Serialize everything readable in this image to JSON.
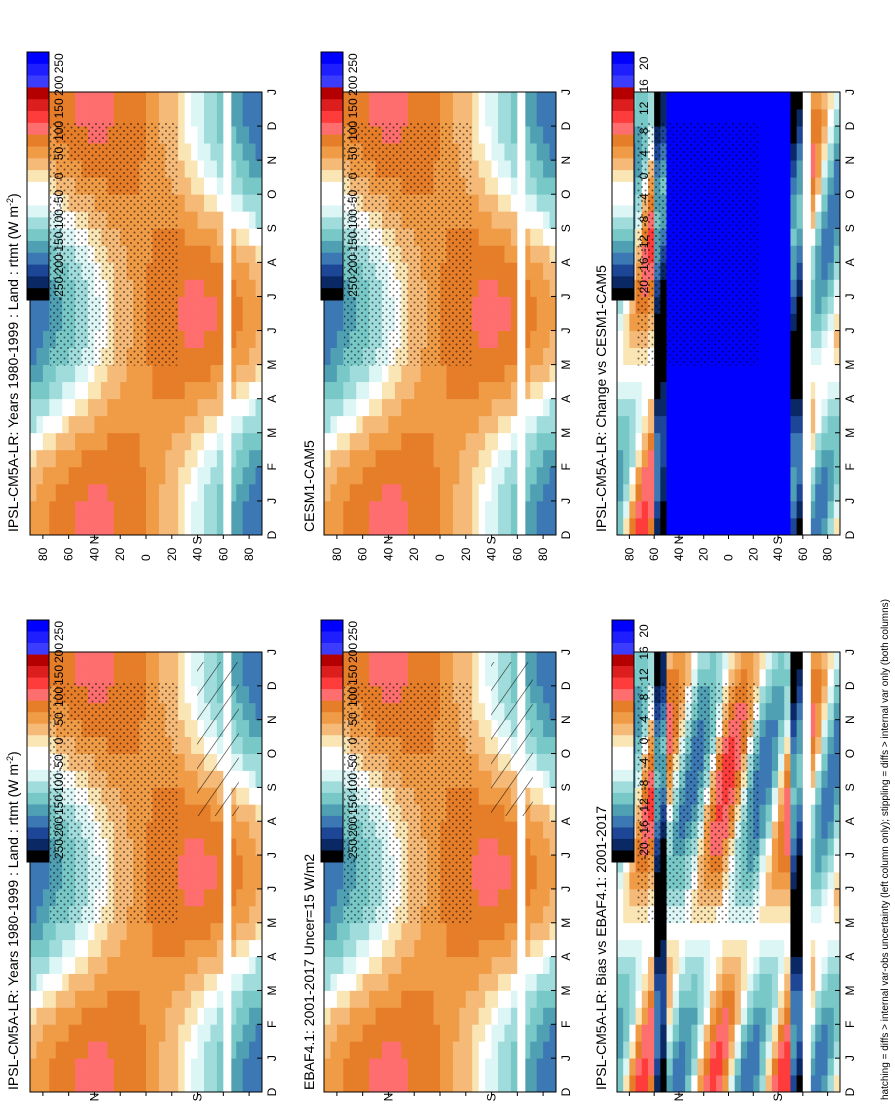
{
  "figure": {
    "caption": "hatching = diffs > internal var-obs uncertainty (left column only); stippling = diffs > internal var only (both columns)",
    "orientation_note": "rotated 90 degrees clockwise",
    "colors": {
      "blue": "#0000ff",
      "deep_red": "#b40000",
      "red": "#ff3c3c",
      "orange": "#e67d28",
      "white": "#ffffff",
      "teal": "#78c8c8",
      "black": "#000000"
    }
  },
  "chart_data": [
    {
      "type": "heatmap",
      "panel": "left-top",
      "title": "IPSL-CM5A-LR: Years 1980-1999 : Land : rtmt (W m",
      "title_sup": "-2",
      "title_end": ")",
      "xlabel": "Month",
      "ylabel": "Latitude",
      "months": [
        "D",
        "J",
        "F",
        "M",
        "A",
        "M",
        "J",
        "J",
        "A",
        "S",
        "O",
        "N",
        "D",
        "J"
      ],
      "lat_ticks": [
        "80",
        "60",
        "40",
        "20",
        "0",
        "20",
        "40",
        "60",
        "80"
      ],
      "lat_suffix": [
        "",
        "",
        "N",
        "",
        "",
        "",
        "S",
        "",
        ""
      ],
      "lat_range": [
        -90,
        90
      ],
      "colorbar": {
        "labels": [
          "250",
          "200",
          "150",
          "100",
          "50",
          "0",
          "-50",
          "-100",
          "-150",
          "-200",
          "-250"
        ],
        "colors": [
          "#0000ff",
          "#1e1eff",
          "#3c3cff",
          "#b40000",
          "#dc1e1e",
          "#ff3c3c",
          "#ff6e6e",
          "#e67d28",
          "#f09b46",
          "#f5b978",
          "#fae6b4",
          "#ffffff",
          "#ffffff",
          "#dcf5f5",
          "#a0dcdc",
          "#78c8c8",
          "#50a0b4",
          "#3c78b4",
          "#1e4696",
          "#0a2864",
          "#000000"
        ]
      },
      "hatching": true,
      "stippling": true
    },
    {
      "type": "heatmap",
      "panel": "left-middle",
      "title": "EBAF4.1: 2001-2017 Uncer=15 W/m2",
      "xlabel": "Month",
      "ylabel": "Latitude",
      "months": [
        "D",
        "J",
        "F",
        "M",
        "A",
        "M",
        "J",
        "J",
        "A",
        "S",
        "O",
        "N",
        "D",
        "J"
      ],
      "lat_ticks": [
        "80",
        "60",
        "40",
        "20",
        "0",
        "20",
        "40",
        "60",
        "80"
      ],
      "lat_suffix": [
        "",
        "",
        "N",
        "",
        "",
        "",
        "S",
        "",
        ""
      ],
      "lat_range": [
        -90,
        90
      ],
      "colorbar": {
        "labels": [
          "250",
          "200",
          "150",
          "100",
          "50",
          "0",
          "-50",
          "-100",
          "-150",
          "-200",
          "-250"
        ]
      },
      "hatching": true,
      "stippling": true
    },
    {
      "type": "heatmap",
      "panel": "left-bottom",
      "title": "IPSL-CM5A-LR: Bias vs EBAF4.1: 2001-2017",
      "xlabel": "Month",
      "ylabel": "Latitude",
      "months": [
        "D",
        "J",
        "F",
        "M",
        "A",
        "M",
        "J",
        "J",
        "A",
        "S",
        "O",
        "N",
        "D",
        "J"
      ],
      "lat_ticks": [
        "80",
        "60",
        "40",
        "20",
        "0",
        "20",
        "40",
        "60",
        "80"
      ],
      "lat_suffix": [
        "",
        "",
        "N",
        "",
        "",
        "",
        "S",
        "",
        ""
      ],
      "lat_range": [
        -90,
        90
      ],
      "colorbar": {
        "labels": [
          "20",
          "16",
          "12",
          "8",
          "4",
          "0",
          "-4",
          "-8",
          "-12",
          "-16",
          "-20"
        ],
        "colors": [
          "#0000ff",
          "#1e1eff",
          "#3c3cff",
          "#b40000",
          "#dc1e1e",
          "#ff3c3c",
          "#ff6e6e",
          "#e67d28",
          "#f09b46",
          "#f5b978",
          "#fae6b4",
          "#ffffff",
          "#ffffff",
          "#dcf5f5",
          "#a0dcdc",
          "#78c8c8",
          "#50a0b4",
          "#3c78b4",
          "#1e4696",
          "#0a2864",
          "#000000"
        ]
      },
      "stippling": true
    },
    {
      "type": "heatmap",
      "panel": "right-top",
      "title": "IPSL-CM5A-LR: Years 1980-1999 : Land : rtmt (W m",
      "title_sup": "-2",
      "title_end": ")",
      "xlabel": "Month",
      "ylabel": "Latitude",
      "months": [
        "D",
        "J",
        "F",
        "M",
        "A",
        "M",
        "J",
        "J",
        "A",
        "S",
        "O",
        "N",
        "D",
        "J"
      ],
      "lat_ticks": [
        "80",
        "60",
        "40",
        "20",
        "0",
        "20",
        "40",
        "60",
        "80"
      ],
      "lat_suffix": [
        "",
        "",
        "N",
        "",
        "",
        "",
        "S",
        "",
        ""
      ],
      "lat_range": [
        -90,
        90
      ],
      "colorbar": {
        "labels": [
          "250",
          "200",
          "150",
          "100",
          "50",
          "0",
          "-50",
          "-100",
          "-150",
          "-200",
          "-250"
        ]
      },
      "stippling": true
    },
    {
      "type": "heatmap",
      "panel": "right-middle",
      "title": "CESM1-CAM5",
      "xlabel": "Month",
      "ylabel": "Latitude",
      "months": [
        "D",
        "J",
        "F",
        "M",
        "A",
        "M",
        "J",
        "J",
        "A",
        "S",
        "O",
        "N",
        "D",
        "J"
      ],
      "lat_ticks": [
        "80",
        "60",
        "40",
        "20",
        "0",
        "20",
        "40",
        "60",
        "80"
      ],
      "lat_suffix": [
        "",
        "",
        "N",
        "",
        "",
        "",
        "S",
        "",
        ""
      ],
      "lat_range": [
        -90,
        90
      ],
      "colorbar": {
        "labels": [
          "250",
          "200",
          "150",
          "100",
          "50",
          "0",
          "-50",
          "-100",
          "-150",
          "-200",
          "-250"
        ]
      },
      "stippling": true
    },
    {
      "type": "heatmap",
      "panel": "right-bottom",
      "title": "IPSL-CM5A-LR: Change vs CESM1-CAM5",
      "xlabel": "Month",
      "ylabel": "Latitude",
      "months": [
        "D",
        "J",
        "F",
        "M",
        "A",
        "M",
        "J",
        "J",
        "A",
        "S",
        "O",
        "N",
        "D",
        "J"
      ],
      "lat_ticks": [
        "80",
        "60",
        "40",
        "20",
        "0",
        "20",
        "40",
        "60",
        "80"
      ],
      "lat_suffix": [
        "",
        "",
        "N",
        "",
        "",
        "",
        "S",
        "",
        ""
      ],
      "lat_range": [
        -90,
        90
      ],
      "colorbar": {
        "labels": [
          "20",
          "16",
          "12",
          "8",
          "4",
          "0",
          "-4",
          "-8",
          "-12",
          "-16",
          "-20"
        ]
      },
      "stippling": true
    }
  ]
}
